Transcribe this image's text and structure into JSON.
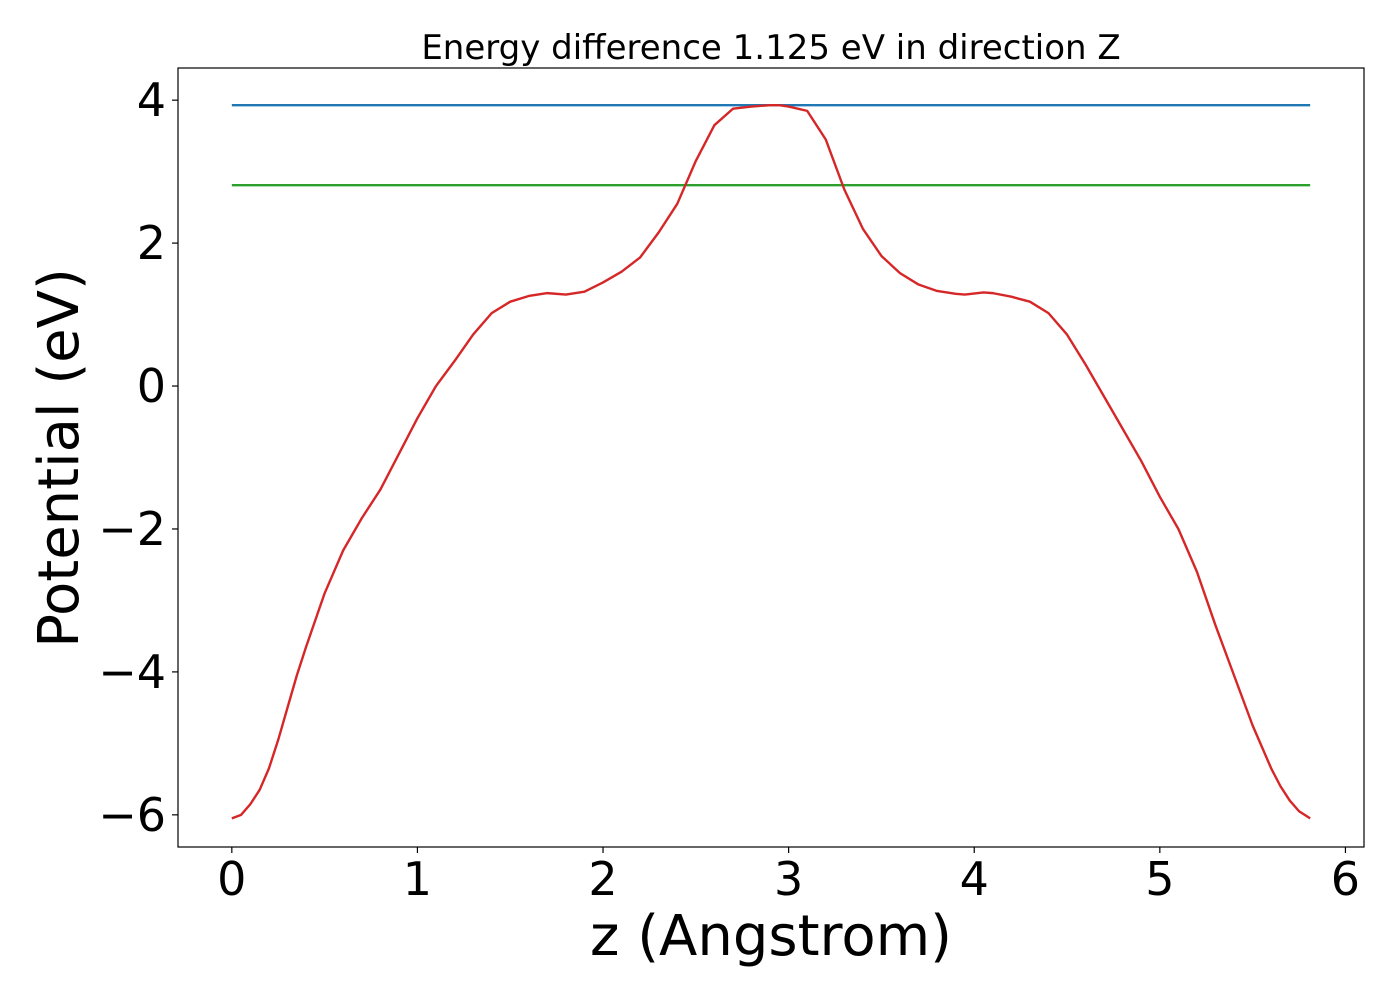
{
  "chart_data": {
    "type": "line",
    "title": "Energy difference 1.125 eV in direction Z",
    "xlabel": "z (Angstrom)",
    "ylabel": "Potential (eV)",
    "xlim": [
      -0.29,
      6.1
    ],
    "ylim": [
      -6.45,
      4.45
    ],
    "xticks": [
      0,
      1,
      2,
      3,
      4,
      5,
      6
    ],
    "yticks": [
      -6,
      -4,
      -2,
      0,
      2,
      4
    ],
    "xtick_labels": [
      "0",
      "1",
      "2",
      "3",
      "4",
      "5",
      "6"
    ],
    "ytick_labels": [
      "−6",
      "−4",
      "−2",
      "0",
      "2",
      "4"
    ],
    "grid": false,
    "legend": "none",
    "series": [
      {
        "color": "#1f77b4",
        "x": [
          0,
          5.81
        ],
        "y": [
          3.93,
          3.93
        ]
      },
      {
        "color": "#2ca02c",
        "x": [
          0,
          5.81
        ],
        "y": [
          2.81,
          2.81
        ]
      },
      {
        "color": "#d62728",
        "x": [
          0,
          0.05,
          0.1,
          0.15,
          0.2,
          0.25,
          0.3,
          0.35,
          0.4,
          0.5,
          0.6,
          0.7,
          0.8,
          0.9,
          1.0,
          1.1,
          1.2,
          1.3,
          1.4,
          1.5,
          1.6,
          1.7,
          1.8,
          1.9,
          2.0,
          2.1,
          2.2,
          2.3,
          2.4,
          2.5,
          2.6,
          2.7,
          2.8,
          2.9,
          2.95,
          3.0,
          3.1,
          3.2,
          3.3,
          3.4,
          3.5,
          3.6,
          3.7,
          3.8,
          3.9,
          3.95,
          4.05,
          4.1,
          4.2,
          4.3,
          4.4,
          4.5,
          4.6,
          4.7,
          4.8,
          4.9,
          5.0,
          5.1,
          5.2,
          5.3,
          5.4,
          5.5,
          5.6,
          5.65,
          5.7,
          5.75,
          5.81
        ],
        "y": [
          -6.05,
          -6.0,
          -5.85,
          -5.65,
          -5.35,
          -4.95,
          -4.5,
          -4.05,
          -3.65,
          -2.9,
          -2.3,
          -1.85,
          -1.45,
          -0.95,
          -0.45,
          0.0,
          0.35,
          0.72,
          1.02,
          1.18,
          1.26,
          1.3,
          1.28,
          1.32,
          1.45,
          1.6,
          1.8,
          2.15,
          2.55,
          3.15,
          3.65,
          3.88,
          3.91,
          3.93,
          3.93,
          3.91,
          3.85,
          3.45,
          2.75,
          2.2,
          1.82,
          1.58,
          1.42,
          1.33,
          1.29,
          1.28,
          1.31,
          1.3,
          1.25,
          1.18,
          1.02,
          0.72,
          0.3,
          -0.15,
          -0.6,
          -1.05,
          -1.55,
          -2.0,
          -2.6,
          -3.35,
          -4.05,
          -4.75,
          -5.35,
          -5.6,
          -5.8,
          -5.95,
          -6.05
        ]
      }
    ]
  }
}
